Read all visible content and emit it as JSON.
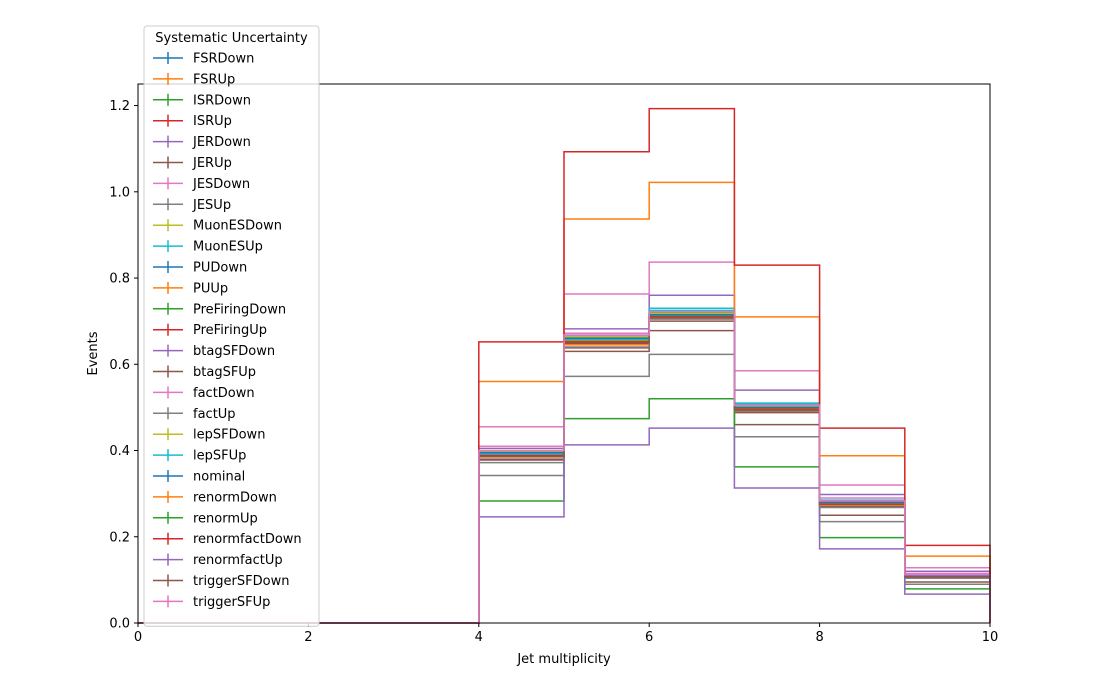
{
  "chart_data": {
    "type": "line",
    "drawstyle": "steps",
    "xlabel": "Jet multiplicity",
    "ylabel": "Events",
    "xlim": [
      0,
      10
    ],
    "ylim": [
      0,
      1.25
    ],
    "x_ticks": [
      "0",
      "2",
      "4",
      "6",
      "8",
      "10"
    ],
    "y_ticks": [
      "0.0",
      "0.2",
      "0.4",
      "0.6",
      "0.8",
      "1.0",
      "1.2"
    ],
    "legend": {
      "title": "Systematic Uncertainty",
      "placement": "upper-left, outside"
    },
    "bin_edges": [
      0,
      1,
      2,
      3,
      4,
      5,
      6,
      7,
      8,
      9,
      10
    ],
    "series": [
      {
        "name": "FSRDown",
        "color": "#1f77b4",
        "values": [
          0,
          0,
          0,
          0,
          0.395,
          0.66,
          0.715,
          0.5,
          0.28,
          0.11
        ]
      },
      {
        "name": "FSRUp",
        "color": "#ff7f0e",
        "values": [
          0,
          0,
          0,
          0,
          0.39,
          0.65,
          0.71,
          0.495,
          0.275,
          0.108
        ]
      },
      {
        "name": "ISRDown",
        "color": "#2ca02c",
        "values": [
          0,
          0,
          0,
          0,
          0.392,
          0.655,
          0.712,
          0.498,
          0.278,
          0.109
        ]
      },
      {
        "name": "ISRUp",
        "color": "#d62728",
        "values": [
          0,
          0,
          0,
          0,
          0.388,
          0.648,
          0.708,
          0.493,
          0.274,
          0.107
        ]
      },
      {
        "name": "JERDown",
        "color": "#9467bd",
        "values": [
          0,
          0,
          0,
          0,
          0.396,
          0.662,
          0.716,
          0.501,
          0.281,
          0.111
        ]
      },
      {
        "name": "JERUp",
        "color": "#8c564b",
        "values": [
          0,
          0,
          0,
          0,
          0.38,
          0.63,
          0.678,
          0.46,
          0.25,
          0.095
        ]
      },
      {
        "name": "JESDown",
        "color": "#e377c2",
        "values": [
          0,
          0,
          0,
          0,
          0.41,
          0.672,
          0.73,
          0.51,
          0.29,
          0.115
        ]
      },
      {
        "name": "JESUp",
        "color": "#7f7f7f",
        "values": [
          0,
          0,
          0,
          0,
          0.342,
          0.572,
          0.623,
          0.432,
          0.235,
          0.09
        ]
      },
      {
        "name": "MuonESDown",
        "color": "#bcbd22",
        "values": [
          0,
          0,
          0,
          0,
          0.393,
          0.657,
          0.713,
          0.499,
          0.279,
          0.109
        ]
      },
      {
        "name": "MuonESUp",
        "color": "#17becf",
        "values": [
          0,
          0,
          0,
          0,
          0.397,
          0.665,
          0.725,
          0.508,
          0.283,
          0.112
        ]
      },
      {
        "name": "PUDown",
        "color": "#1f77b4",
        "values": [
          0,
          0,
          0,
          0,
          0.395,
          0.66,
          0.72,
          0.505,
          0.282,
          0.11
        ]
      },
      {
        "name": "PUUp",
        "color": "#ff7f0e",
        "values": [
          0,
          0,
          0,
          0,
          0.385,
          0.645,
          0.705,
          0.49,
          0.272,
          0.106
        ]
      },
      {
        "name": "PreFiringDown",
        "color": "#2ca02c",
        "values": [
          0,
          0,
          0,
          0,
          0.394,
          0.658,
          0.714,
          0.5,
          0.28,
          0.11
        ]
      },
      {
        "name": "PreFiringUp",
        "color": "#d62728",
        "values": [
          0,
          0,
          0,
          0,
          0.39,
          0.652,
          0.71,
          0.496,
          0.276,
          0.108
        ]
      },
      {
        "name": "btagSFDown",
        "color": "#9467bd",
        "values": [
          0,
          0,
          0,
          0,
          0.405,
          0.682,
          0.76,
          0.54,
          0.298,
          0.12
        ]
      },
      {
        "name": "btagSFUp",
        "color": "#8c564b",
        "values": [
          0,
          0,
          0,
          0,
          0.378,
          0.638,
          0.7,
          0.488,
          0.27,
          0.104
        ]
      },
      {
        "name": "factDown",
        "color": "#e377c2",
        "values": [
          0,
          0,
          0,
          0,
          0.455,
          0.763,
          0.837,
          0.585,
          0.32,
          0.128
        ]
      },
      {
        "name": "factUp",
        "color": "#7f7f7f",
        "values": [
          0,
          0,
          0,
          0,
          0.372,
          0.64,
          0.705,
          0.492,
          0.268,
          0.104
        ]
      },
      {
        "name": "lepSFDown",
        "color": "#bcbd22",
        "values": [
          0,
          0,
          0,
          0,
          0.398,
          0.664,
          0.718,
          0.502,
          0.281,
          0.111
        ]
      },
      {
        "name": "lepSFUp",
        "color": "#17becf",
        "values": [
          0,
          0,
          0,
          0,
          0.392,
          0.658,
          0.73,
          0.51,
          0.285,
          0.112
        ]
      },
      {
        "name": "nominal",
        "color": "#1f77b4",
        "values": [
          0,
          0,
          0,
          0,
          0.395,
          0.66,
          0.715,
          0.5,
          0.28,
          0.11
        ]
      },
      {
        "name": "renormDown",
        "color": "#ff7f0e",
        "values": [
          0,
          0,
          0,
          0,
          0.56,
          0.937,
          1.022,
          0.71,
          0.388,
          0.155
        ]
      },
      {
        "name": "renormUp",
        "color": "#2ca02c",
        "values": [
          0,
          0,
          0,
          0,
          0.283,
          0.474,
          0.52,
          0.362,
          0.198,
          0.079
        ]
      },
      {
        "name": "renormfactDown",
        "color": "#d62728",
        "values": [
          0,
          0,
          0,
          0,
          0.652,
          1.093,
          1.193,
          0.83,
          0.452,
          0.18
        ]
      },
      {
        "name": "renormfactUp",
        "color": "#9467bd",
        "values": [
          0,
          0,
          0,
          0,
          0.246,
          0.413,
          0.452,
          0.313,
          0.172,
          0.067
        ]
      },
      {
        "name": "triggerSFDown",
        "color": "#8c564b",
        "values": [
          0,
          0,
          0,
          0,
          0.386,
          0.65,
          0.708,
          0.494,
          0.276,
          0.107
        ]
      },
      {
        "name": "triggerSFUp",
        "color": "#e377c2",
        "values": [
          0,
          0,
          0,
          0,
          0.4,
          0.668,
          0.722,
          0.505,
          0.283,
          0.112
        ]
      }
    ]
  }
}
